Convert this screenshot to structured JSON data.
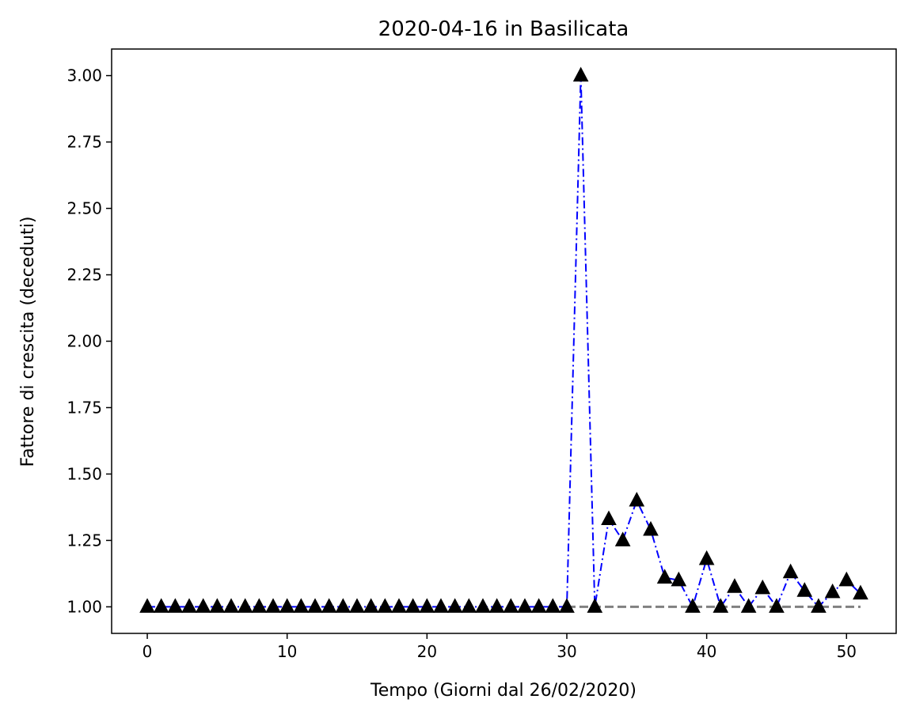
{
  "chart_data": {
    "type": "line",
    "title": "2020-04-16 in Basilicata",
    "xlabel": "Tempo (Giorni dal 26/02/2020)",
    "ylabel": "Fattore di crescita (deceduti)",
    "xlim": [
      -2.55,
      53.55
    ],
    "ylim": [
      0.9,
      3.1
    ],
    "xticks": [
      0,
      10,
      20,
      30,
      40,
      50
    ],
    "xtick_labels": [
      "0",
      "10",
      "20",
      "30",
      "40",
      "50"
    ],
    "yticks": [
      1.0,
      1.25,
      1.5,
      1.75,
      2.0,
      2.25,
      2.5,
      2.75,
      3.0
    ],
    "ytick_labels": [
      "1.00",
      "1.25",
      "1.50",
      "1.75",
      "2.00",
      "2.25",
      "2.50",
      "2.75",
      "3.00"
    ],
    "grid": false,
    "colors": {
      "series": "#0000ff",
      "marker": "#000000",
      "reference": "#808080"
    },
    "series": [
      {
        "style": "dash-dot",
        "marker": "triangle-up",
        "x": [
          0,
          1,
          2,
          3,
          4,
          5,
          6,
          7,
          8,
          9,
          10,
          11,
          12,
          13,
          14,
          15,
          16,
          17,
          18,
          19,
          20,
          21,
          22,
          23,
          24,
          25,
          26,
          27,
          28,
          29,
          30,
          31,
          32,
          33,
          34,
          35,
          36,
          37,
          38,
          39,
          40,
          41,
          42,
          43,
          44,
          45,
          46,
          47,
          48,
          49,
          50,
          51
        ],
        "values": [
          1,
          1,
          1,
          1,
          1,
          1,
          1,
          1,
          1,
          1,
          1,
          1,
          1,
          1,
          1,
          1,
          1,
          1,
          1,
          1,
          1,
          1,
          1,
          1,
          1,
          1,
          1,
          1,
          1,
          1,
          1,
          3.0,
          1.0,
          1.33,
          1.25,
          1.4,
          1.29,
          1.11,
          1.1,
          1.0,
          1.18,
          1.0,
          1.075,
          1.0,
          1.07,
          1.0,
          1.13,
          1.06,
          1.0,
          1.055,
          1.1,
          1.05
        ]
      },
      {
        "style": "dashed",
        "x": [
          30,
          51
        ],
        "values": [
          1.0,
          1.0
        ]
      }
    ]
  }
}
